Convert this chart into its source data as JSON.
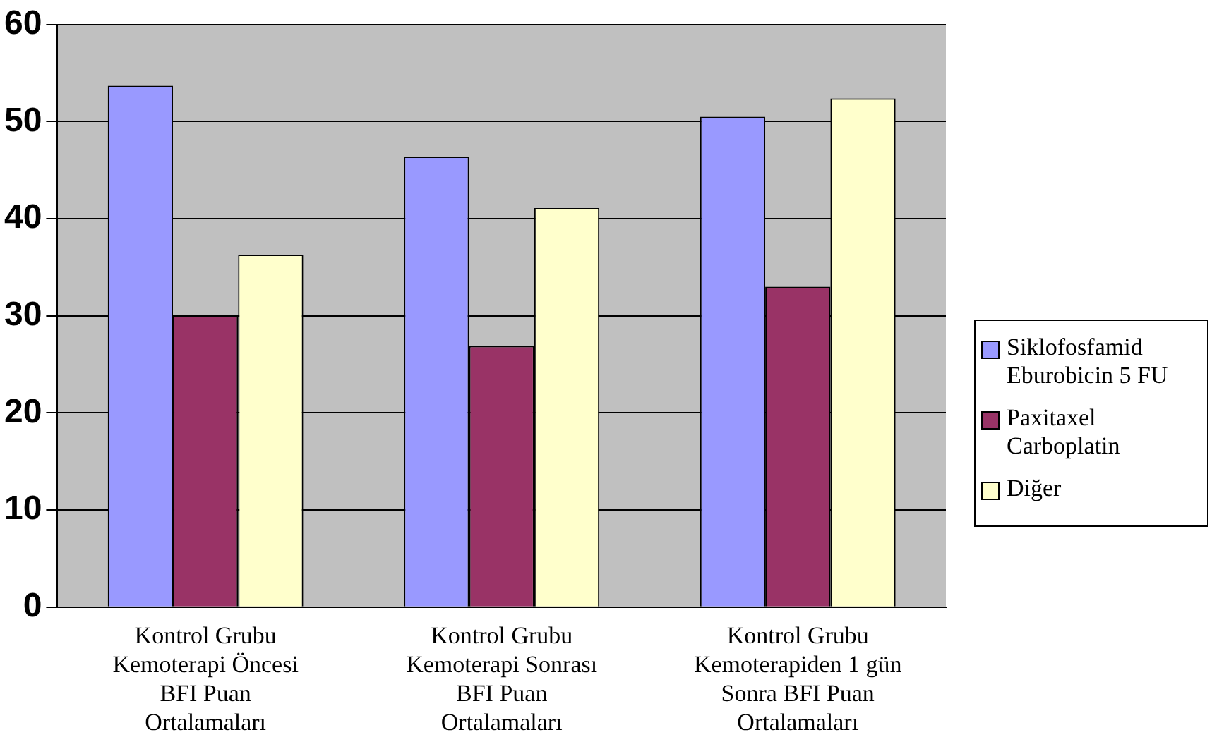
{
  "chart_data": {
    "type": "bar",
    "categories": [
      "Kontrol Grubu Kemoterapi Öncesi BFI Puan Ortalamaları",
      "Kontrol Grubu Kemoterapi Sonrası BFI Puan Ortalamaları",
      "Kontrol Grubu Kemoterapiden 1 gün Sonra BFI Puan Ortalamaları"
    ],
    "series": [
      {
        "name": "Siklofosfamid Eburobicin 5 FU",
        "color": "#9999ff",
        "values": [
          53.7,
          46.4,
          50.5
        ]
      },
      {
        "name": "Paxitaxel Carboplatin",
        "color": "#993366",
        "values": [
          30,
          26.9,
          33
        ]
      },
      {
        "name": "Diğer",
        "color": "#ffffcc",
        "values": [
          36.3,
          41.1,
          52.4
        ]
      }
    ],
    "ylim": [
      0,
      60
    ],
    "yticks": [
      0,
      10,
      20,
      30,
      40,
      50,
      60
    ],
    "grid": "y",
    "legend": "right"
  }
}
